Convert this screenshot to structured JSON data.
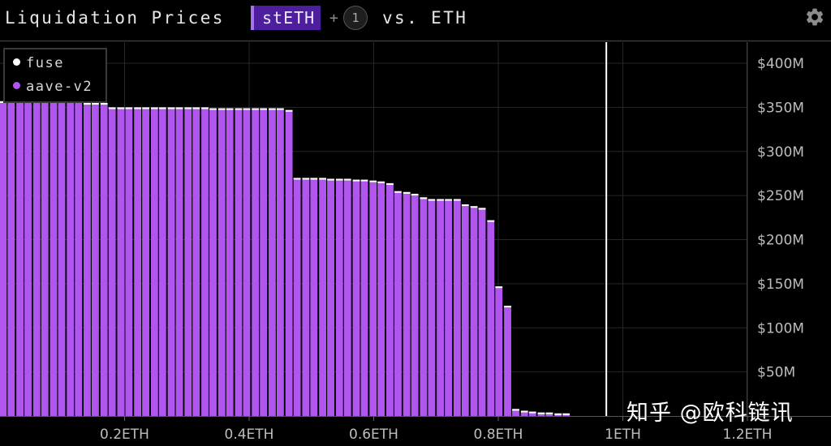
{
  "header": {
    "title": "Liquidation Prices",
    "asset": "stETH",
    "plus": "+",
    "extra_count": "1",
    "quote": "vs. ETH"
  },
  "legend": {
    "items": [
      {
        "label": "fuse",
        "color": "#ffffff"
      },
      {
        "label": "aave-v2",
        "color": "#b056ee"
      }
    ]
  },
  "watermark": "知乎 @欧科链讯",
  "chart_data": {
    "type": "bar",
    "title": "",
    "xlabel": "",
    "ylabel": "",
    "x_unit": "ETH",
    "xlim": [
      0.0,
      1.31
    ],
    "ylim": [
      0,
      430
    ],
    "y_unit": "$M",
    "x_ticks": [
      {
        "value": 0.2,
        "label": "0.2ETH"
      },
      {
        "value": 0.4,
        "label": "0.4ETH"
      },
      {
        "value": 0.6,
        "label": "0.6ETH"
      },
      {
        "value": 0.8,
        "label": "0.8ETH"
      },
      {
        "value": 1.0,
        "label": "1ETH"
      },
      {
        "value": 1.2,
        "label": "1.2ETH"
      }
    ],
    "y_ticks": [
      {
        "value": 50,
        "label": "$50M"
      },
      {
        "value": 100,
        "label": "$100M"
      },
      {
        "value": 150,
        "label": "$150M"
      },
      {
        "value": 200,
        "label": "$200M"
      },
      {
        "value": 250,
        "label": "$250M"
      },
      {
        "value": 300,
        "label": "$300M"
      },
      {
        "value": 350,
        "label": "$350M"
      },
      {
        "value": 400,
        "label": "$400M"
      }
    ],
    "current_price": 0.98,
    "grid": true,
    "legend_position": "top-left",
    "bar_width": 0.0115,
    "x": [
      0.005,
      0.018,
      0.032,
      0.045,
      0.059,
      0.072,
      0.086,
      0.099,
      0.113,
      0.126,
      0.14,
      0.153,
      0.167,
      0.18,
      0.194,
      0.207,
      0.221,
      0.234,
      0.248,
      0.261,
      0.275,
      0.288,
      0.302,
      0.315,
      0.329,
      0.342,
      0.356,
      0.369,
      0.383,
      0.396,
      0.41,
      0.423,
      0.437,
      0.45,
      0.464,
      0.477,
      0.491,
      0.504,
      0.518,
      0.531,
      0.545,
      0.558,
      0.572,
      0.585,
      0.599,
      0.612,
      0.626,
      0.639,
      0.653,
      0.666,
      0.68,
      0.693,
      0.707,
      0.72,
      0.734,
      0.747,
      0.761,
      0.774,
      0.788,
      0.801,
      0.815,
      0.828,
      0.842,
      0.855,
      0.869,
      0.882,
      0.896,
      0.909
    ],
    "series": [
      {
        "name": "aave-v2",
        "color": "#b056ee",
        "values": [
          355,
          355,
          355,
          355,
          355,
          355,
          355,
          355,
          355,
          355,
          353,
          353,
          353,
          348,
          348,
          348,
          348,
          348,
          348,
          348,
          348,
          348,
          348,
          348,
          348,
          347,
          347,
          347,
          347,
          347,
          347,
          347,
          347,
          347,
          345,
          268,
          268,
          268,
          268,
          267,
          267,
          267,
          266,
          266,
          265,
          264,
          262,
          253,
          252,
          250,
          246,
          244,
          244,
          244,
          244,
          238,
          236,
          234,
          220,
          145,
          123,
          6,
          4,
          3,
          2,
          2,
          1,
          1
        ]
      },
      {
        "name": "fuse",
        "color": "#ffffff",
        "values": [
          2,
          2,
          2,
          2,
          2,
          2,
          2,
          2,
          2,
          2,
          2,
          2,
          2,
          2,
          2,
          2,
          2,
          2,
          2,
          2,
          2,
          2,
          2,
          2,
          2,
          2,
          2,
          2,
          2,
          2,
          2,
          2,
          2,
          2,
          2,
          2,
          2,
          2,
          2,
          2,
          2,
          2,
          2,
          2,
          2,
          2,
          2,
          2,
          2,
          2,
          2,
          2,
          2,
          2,
          2,
          2,
          2,
          2,
          2,
          2,
          2,
          2,
          2,
          2,
          2,
          2,
          2,
          2
        ]
      }
    ]
  }
}
